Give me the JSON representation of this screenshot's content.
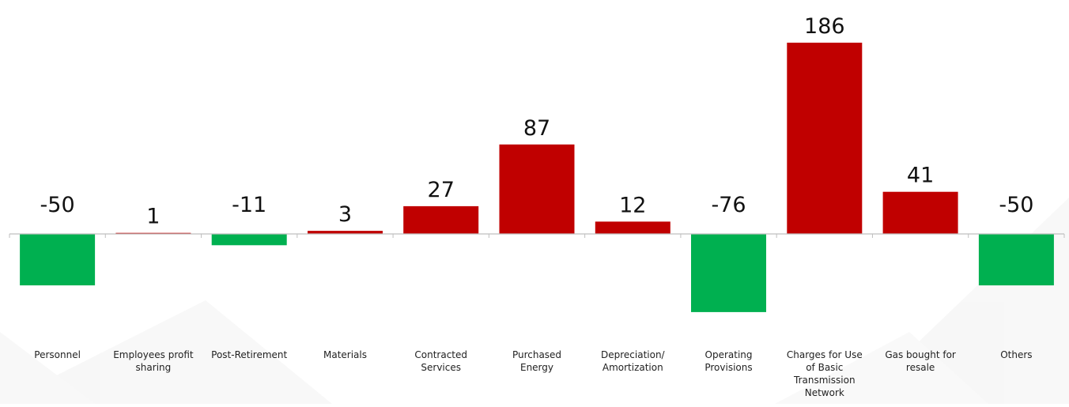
{
  "chart_data": {
    "type": "bar",
    "categories": [
      "Personnel",
      "Employees profit sharing",
      "Post-Retirement",
      "Materials",
      "Contracted Services",
      "Purchased Energy",
      "Depreciation/ Amortization",
      "Operating Provisions",
      "Charges for Use of Basic Transmission Network",
      "Gas bought for resale",
      "Others"
    ],
    "category_lines": [
      [
        "Personnel"
      ],
      [
        "Employees profit",
        "sharing"
      ],
      [
        "Post-Retirement"
      ],
      [
        "Materials"
      ],
      [
        "Contracted",
        "Services"
      ],
      [
        "Purchased",
        "Energy"
      ],
      [
        "Depreciation/",
        "Amortization"
      ],
      [
        "Operating",
        "Provisions"
      ],
      [
        "Charges for Use",
        "of Basic",
        "Transmission",
        "Network"
      ],
      [
        "Gas bought for",
        "resale"
      ],
      [
        "Others"
      ]
    ],
    "values": [
      -50,
      1,
      -11,
      3,
      27,
      87,
      12,
      -76,
      186,
      41,
      -50
    ],
    "value_labels": [
      "-50",
      "1",
      "-11",
      "3",
      "27",
      "87",
      "12",
      "-76",
      "186",
      "41",
      "-50"
    ],
    "ylim": [
      -76,
      186
    ],
    "grid": false,
    "legend": "none",
    "colors": {
      "positive": "#c00000",
      "negative": "#00b050",
      "axis": "#bfbfbf"
    }
  }
}
